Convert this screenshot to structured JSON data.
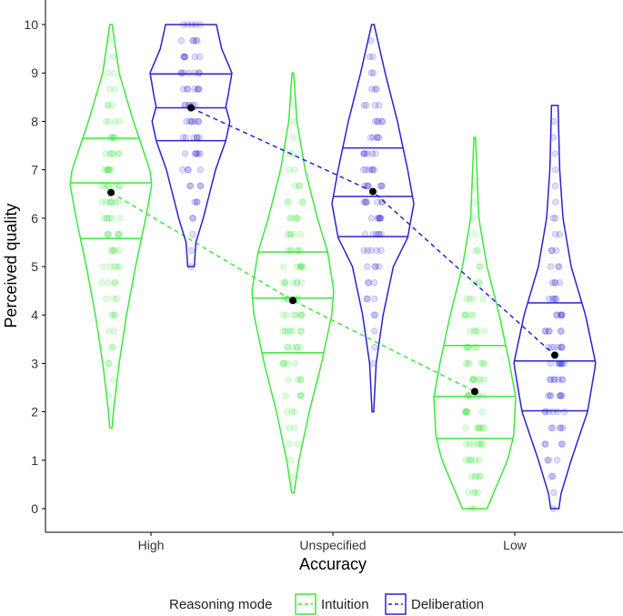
{
  "chart_data": {
    "type": "violin",
    "xlabel": "Accuracy",
    "ylabel": "Perceived quality",
    "categories": [
      "High",
      "Unspecified",
      "Low"
    ],
    "ylim": [
      0,
      10
    ],
    "yticks": [
      "0",
      "1",
      "2",
      "3",
      "4",
      "5",
      "6",
      "7",
      "8",
      "9",
      "10"
    ],
    "grid": false,
    "legend": {
      "title": "Reasoning mode",
      "placement": "bottom"
    },
    "series": [
      {
        "name": "Intuition",
        "color": "#3ee63e",
        "linestyle": "dashed",
        "means": [
          6.53,
          4.3,
          2.42
        ],
        "quartiles": [
          [
            5.58,
            6.73,
            7.65
          ],
          [
            3.22,
            4.35,
            5.3
          ],
          [
            1.45,
            2.32,
            3.37
          ]
        ],
        "range": [
          [
            1.67,
            10
          ],
          [
            0.33,
            9
          ],
          [
            0,
            7.67
          ]
        ],
        "density": [
          [
            [
              1.67,
              0.03
            ],
            [
              2,
              0.06
            ],
            [
              3,
              0.2
            ],
            [
              4,
              0.38
            ],
            [
              5,
              0.6
            ],
            [
              6,
              0.85
            ],
            [
              6.7,
              1
            ],
            [
              7,
              0.95
            ],
            [
              8,
              0.55
            ],
            [
              9,
              0.2
            ],
            [
              10,
              0.03
            ]
          ],
          [
            [
              0.33,
              0.03
            ],
            [
              1,
              0.15
            ],
            [
              2,
              0.4
            ],
            [
              3,
              0.7
            ],
            [
              4,
              0.95
            ],
            [
              4.5,
              1
            ],
            [
              5.3,
              0.85
            ],
            [
              6,
              0.6
            ],
            [
              7,
              0.3
            ],
            [
              8,
              0.1
            ],
            [
              9,
              0.02
            ]
          ],
          [
            [
              0,
              0.3
            ],
            [
              0.3,
              0.45
            ],
            [
              1,
              0.8
            ],
            [
              1.5,
              0.95
            ],
            [
              2.3,
              1
            ],
            [
              3,
              0.85
            ],
            [
              4,
              0.6
            ],
            [
              5,
              0.3
            ],
            [
              6,
              0.1
            ],
            [
              7.67,
              0.02
            ]
          ]
        ]
      },
      {
        "name": "Deliberation",
        "color": "#2a22d0",
        "linestyle": "dashed",
        "means": [
          8.28,
          6.55,
          3.17
        ],
        "quartiles": [
          [
            7.6,
            8.28,
            8.98
          ],
          [
            5.62,
            6.45,
            7.45
          ],
          [
            2.02,
            3.05,
            4.25
          ]
        ],
        "range": [
          [
            5,
            10
          ],
          [
            2,
            10
          ],
          [
            0,
            8.33
          ]
        ],
        "density": [
          [
            [
              5,
              0.08
            ],
            [
              5.5,
              0.12
            ],
            [
              6,
              0.3
            ],
            [
              7,
              0.6
            ],
            [
              7.6,
              0.85
            ],
            [
              8,
              0.95
            ],
            [
              8.3,
              0.85
            ],
            [
              8.5,
              0.9
            ],
            [
              9,
              1
            ],
            [
              9.5,
              0.75
            ],
            [
              10,
              0.62
            ]
          ],
          [
            [
              2,
              0.02
            ],
            [
              3,
              0.08
            ],
            [
              4,
              0.25
            ],
            [
              5,
              0.5
            ],
            [
              5.6,
              0.85
            ],
            [
              6.3,
              1
            ],
            [
              7,
              0.85
            ],
            [
              8,
              0.6
            ],
            [
              9,
              0.3
            ],
            [
              10,
              0.03
            ]
          ],
          [
            [
              0,
              0.1
            ],
            [
              0.3,
              0.15
            ],
            [
              1,
              0.4
            ],
            [
              2,
              0.8
            ],
            [
              3,
              1
            ],
            [
              4,
              0.75
            ],
            [
              5,
              0.4
            ],
            [
              6,
              0.2
            ],
            [
              7,
              0.12
            ],
            [
              8.33,
              0.08
            ]
          ]
        ]
      }
    ]
  }
}
